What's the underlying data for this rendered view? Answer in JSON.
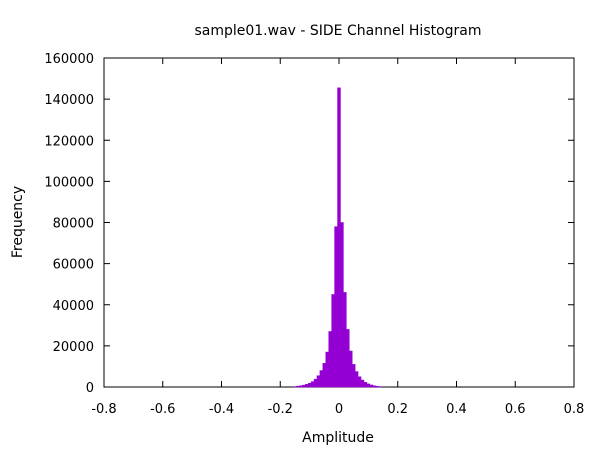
{
  "chart_data": {
    "type": "bar",
    "title": "sample01.wav - SIDE Channel Histogram",
    "xlabel": "Amplitude",
    "ylabel": "Frequency",
    "xlim": [
      -0.8,
      0.8
    ],
    "ylim": [
      0,
      160000
    ],
    "xticks": [
      -0.8,
      -0.6,
      -0.4,
      -0.2,
      0,
      0.2,
      0.4,
      0.6,
      0.8
    ],
    "yticks": [
      0,
      20000,
      40000,
      60000,
      80000,
      100000,
      120000,
      140000,
      160000
    ],
    "xtick_labels": [
      "-0.8",
      "-0.6",
      "-0.4",
      "-0.2",
      "0",
      "0.2",
      "0.4",
      "0.6",
      "0.8"
    ],
    "ytick_labels": [
      "0",
      "20000",
      "40000",
      "60000",
      "80000",
      "100000",
      "120000",
      "140000",
      "160000"
    ],
    "grid": false,
    "bar_color": "#9400d3",
    "bins": [
      {
        "x": -0.15,
        "y": 200
      },
      {
        "x": -0.14,
        "y": 400
      },
      {
        "x": -0.13,
        "y": 600
      },
      {
        "x": -0.12,
        "y": 900
      },
      {
        "x": -0.11,
        "y": 1300
      },
      {
        "x": -0.1,
        "y": 1800
      },
      {
        "x": -0.09,
        "y": 2600
      },
      {
        "x": -0.08,
        "y": 3800
      },
      {
        "x": -0.07,
        "y": 5500
      },
      {
        "x": -0.06,
        "y": 8000
      },
      {
        "x": -0.05,
        "y": 11500
      },
      {
        "x": -0.04,
        "y": 17000
      },
      {
        "x": -0.03,
        "y": 27000
      },
      {
        "x": -0.02,
        "y": 45000
      },
      {
        "x": -0.01,
        "y": 78000
      },
      {
        "x": 0.0,
        "y": 145500
      },
      {
        "x": 0.01,
        "y": 80000
      },
      {
        "x": 0.02,
        "y": 46000
      },
      {
        "x": 0.03,
        "y": 28000
      },
      {
        "x": 0.04,
        "y": 17500
      },
      {
        "x": 0.05,
        "y": 11000
      },
      {
        "x": 0.06,
        "y": 7500
      },
      {
        "x": 0.07,
        "y": 5000
      },
      {
        "x": 0.08,
        "y": 3400
      },
      {
        "x": 0.09,
        "y": 2300
      },
      {
        "x": 0.1,
        "y": 1500
      },
      {
        "x": 0.11,
        "y": 1000
      },
      {
        "x": 0.12,
        "y": 600
      },
      {
        "x": 0.13,
        "y": 350
      },
      {
        "x": 0.14,
        "y": 200
      }
    ]
  }
}
